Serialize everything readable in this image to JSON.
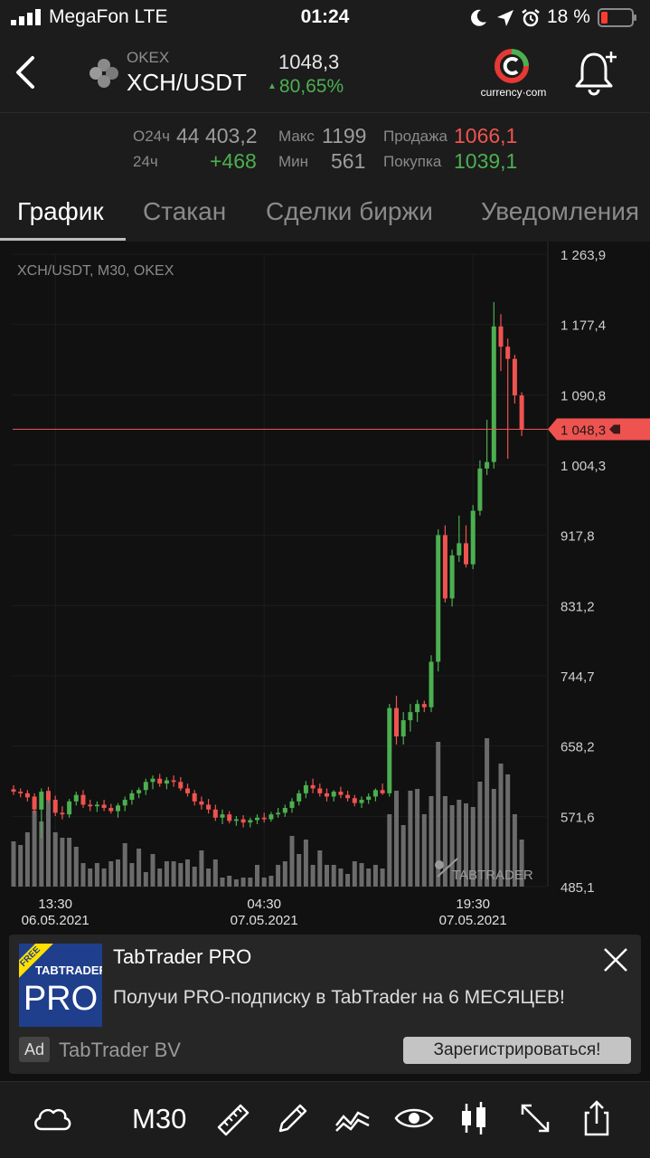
{
  "status_bar": {
    "carrier": "MegaFon  LTE",
    "time": "01:24",
    "battery": "18 %"
  },
  "header": {
    "exchange": "OKEX",
    "pair": "XCH/USDT",
    "price": "1048,3",
    "change": "80,65%",
    "partner_logo_text": "currency·com"
  },
  "stats": {
    "row1": {
      "label1": "О24ч",
      "value1": "44 403,2",
      "label2": "Макс",
      "value2": "1199",
      "label3": "Продажа",
      "value3": "1066,1"
    },
    "row2": {
      "label1": "24ч",
      "value1": "+468",
      "label2": "Мин",
      "value2": "561",
      "label3": "Покупка",
      "value3": "1039,1"
    }
  },
  "tabs": [
    "График",
    "Стакан",
    "Сделки биржи",
    "Уведомления"
  ],
  "colors": {
    "up": "#4caf50",
    "down": "#ef5350",
    "volume": "#6b6b6b",
    "price_line": "#ef5350"
  },
  "chart_data": {
    "type": "candlestick",
    "title": "XCH/USDT, M30, OKEX",
    "watermark": "TABTRADER",
    "y_ticks": [
      "1 263,9",
      "1 177,4",
      "1 090,8",
      "1 004,3",
      "917,8",
      "831,2",
      "744,7",
      "658,2",
      "571,6",
      "485,1"
    ],
    "ylim": [
      485.1,
      1263.9
    ],
    "current_price_label": "1 048,3",
    "current_price": 1048.3,
    "x_ticks": [
      {
        "time": "13:30",
        "date": "06.05.2021",
        "index": 6
      },
      {
        "time": "04:30",
        "date": "07.05.2021",
        "index": 36
      },
      {
        "time": "19:30",
        "date": "07.05.2021",
        "index": 66
      }
    ],
    "candles": [
      [
        605,
        610,
        598,
        602
      ],
      [
        602,
        606,
        595,
        600
      ],
      [
        600,
        604,
        590,
        595
      ],
      [
        596,
        600,
        575,
        580
      ],
      [
        580,
        606,
        545,
        602
      ],
      [
        602,
        608,
        588,
        592
      ],
      [
        592,
        597,
        572,
        576
      ],
      [
        576,
        584,
        568,
        574
      ],
      [
        574,
        593,
        570,
        590
      ],
      [
        590,
        602,
        585,
        598
      ],
      [
        598,
        604,
        582,
        586
      ],
      [
        586,
        592,
        578,
        584
      ],
      [
        584,
        590,
        577,
        586
      ],
      [
        586,
        592,
        578,
        582
      ],
      [
        582,
        587,
        575,
        578
      ],
      [
        578,
        588,
        570,
        585
      ],
      [
        585,
        596,
        578,
        592
      ],
      [
        592,
        604,
        586,
        600
      ],
      [
        600,
        607,
        594,
        604
      ],
      [
        604,
        618,
        598,
        614
      ],
      [
        614,
        622,
        605,
        618
      ],
      [
        618,
        624,
        608,
        612
      ],
      [
        612,
        620,
        605,
        616
      ],
      [
        616,
        622,
        608,
        614
      ],
      [
        614,
        620,
        603,
        606
      ],
      [
        606,
        612,
        596,
        600
      ],
      [
        600,
        604,
        585,
        590
      ],
      [
        590,
        596,
        580,
        586
      ],
      [
        586,
        593,
        575,
        580
      ],
      [
        580,
        586,
        566,
        570
      ],
      [
        570,
        580,
        562,
        574
      ],
      [
        574,
        578,
        563,
        566
      ],
      [
        566,
        572,
        560,
        568
      ],
      [
        568,
        573,
        558,
        564
      ],
      [
        564,
        570,
        558,
        567
      ],
      [
        567,
        574,
        562,
        570
      ],
      [
        570,
        576,
        564,
        568
      ],
      [
        568,
        577,
        565,
        574
      ],
      [
        574,
        582,
        570,
        576
      ],
      [
        576,
        586,
        571,
        582
      ],
      [
        582,
        594,
        576,
        590
      ],
      [
        590,
        604,
        585,
        600
      ],
      [
        600,
        615,
        594,
        610
      ],
      [
        610,
        618,
        600,
        606
      ],
      [
        606,
        612,
        596,
        600
      ],
      [
        600,
        606,
        590,
        596
      ],
      [
        596,
        604,
        590,
        602
      ],
      [
        602,
        608,
        594,
        598
      ],
      [
        598,
        603,
        590,
        594
      ],
      [
        594,
        598,
        584,
        588
      ],
      [
        588,
        596,
        582,
        592
      ],
      [
        592,
        600,
        587,
        596
      ],
      [
        596,
        606,
        590,
        604
      ],
      [
        604,
        612,
        598,
        600
      ],
      [
        600,
        710,
        596,
        705
      ],
      [
        705,
        720,
        660,
        670
      ],
      [
        670,
        700,
        660,
        690
      ],
      [
        690,
        710,
        676,
        700
      ],
      [
        700,
        715,
        688,
        710
      ],
      [
        710,
        714,
        700,
        706
      ],
      [
        706,
        770,
        700,
        762
      ],
      [
        762,
        925,
        750,
        918
      ],
      [
        918,
        930,
        835,
        840
      ],
      [
        840,
        900,
        830,
        893
      ],
      [
        893,
        942,
        885,
        908
      ],
      [
        908,
        930,
        878,
        882
      ],
      [
        882,
        955,
        876,
        948
      ],
      [
        948,
        1010,
        942,
        1000
      ],
      [
        1000,
        1060,
        992,
        1008
      ],
      [
        1008,
        1205,
        1000,
        1175
      ],
      [
        1175,
        1190,
        1120,
        1150
      ],
      [
        1150,
        1160,
        1012,
        1135
      ],
      [
        1135,
        1140,
        1080,
        1090
      ],
      [
        1090,
        1094,
        1040,
        1048
      ]
    ],
    "volumes": [
      0.25,
      0.23,
      0.3,
      0.42,
      0.36,
      0.53,
      0.3,
      0.27,
      0.27,
      0.22,
      0.13,
      0.1,
      0.13,
      0.1,
      0.14,
      0.15,
      0.24,
      0.13,
      0.21,
      0.08,
      0.18,
      0.1,
      0.14,
      0.14,
      0.13,
      0.15,
      0.11,
      0.2,
      0.1,
      0.15,
      0.05,
      0.06,
      0.04,
      0.05,
      0.05,
      0.12,
      0.05,
      0.06,
      0.12,
      0.14,
      0.28,
      0.18,
      0.26,
      0.12,
      0.2,
      0.12,
      0.12,
      0.1,
      0.07,
      0.14,
      0.13,
      0.1,
      0.12,
      0.1,
      0.4,
      0.53,
      0.34,
      0.53,
      0.54,
      0.4,
      0.5,
      0.8,
      0.5,
      0.45,
      0.48,
      0.46,
      0.44,
      0.58,
      0.82,
      0.54,
      0.68,
      0.62,
      0.4,
      0.26
    ]
  },
  "ad": {
    "logo_free": "FREE",
    "logo_brand": "TABTRADER",
    "logo_pro": "PRO",
    "title": "TabTrader PRO",
    "text": "Получи PRO-подписку в TabTrader на 6 МЕСЯЦЕВ!",
    "badge": "Ad",
    "brand": "TabTrader BV",
    "cta": "Зарегистрироваться!"
  },
  "toolbar": {
    "timeframe": "M30",
    "icons": [
      "cloud-icon",
      "ruler-icon",
      "pencil-icon",
      "indicators-icon",
      "eye-icon",
      "candles-icon",
      "expand-icon",
      "share-icon"
    ]
  }
}
